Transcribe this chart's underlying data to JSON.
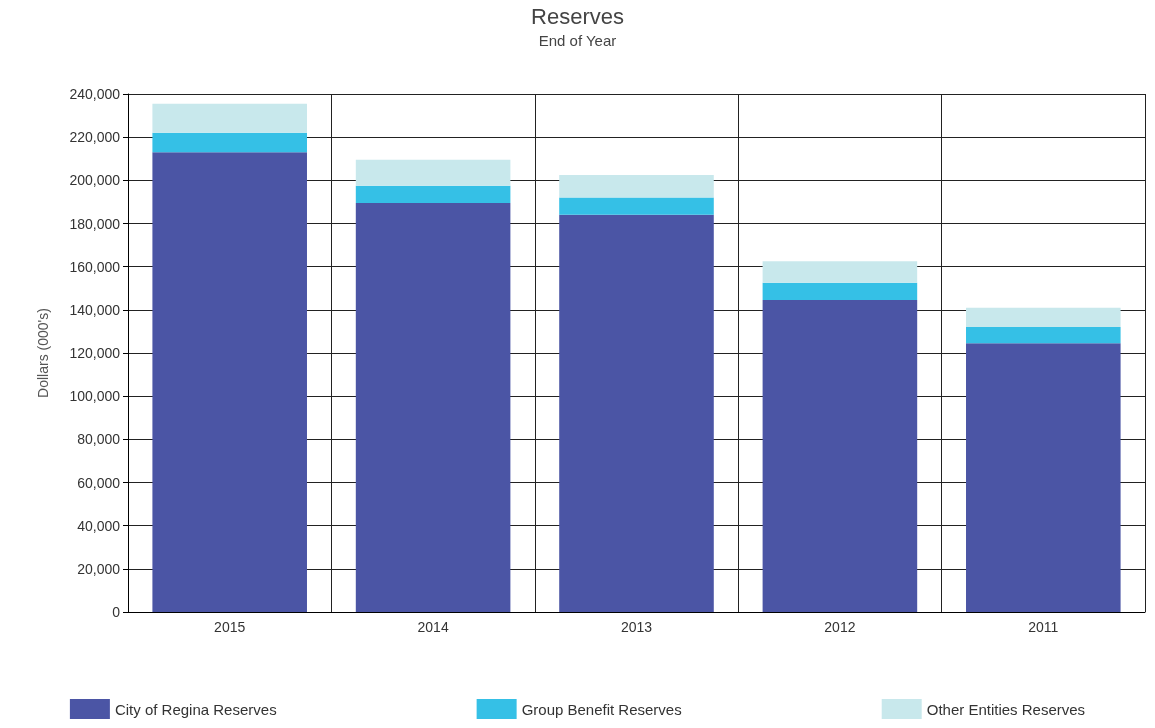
{
  "chart_data": {
    "type": "bar",
    "title": "Reserves",
    "subtitle": "End of Year",
    "ylabel": "Dollars (000's)",
    "categories": [
      "2015",
      "2014",
      "2013",
      "2012",
      "2011"
    ],
    "stacked": true,
    "series": [
      {
        "name": "City of Regina Reserves",
        "color": "#4b55a5",
        "values": [
          213000,
          189500,
          184000,
          144500,
          124500
        ]
      },
      {
        "name": "Group Benefit Reserves",
        "color": "#35c0e6",
        "values": [
          9000,
          8000,
          8000,
          8000,
          7500
        ]
      },
      {
        "name": "Other Entities Reserves",
        "color": "#c8e8ec",
        "values": [
          13500,
          12000,
          10500,
          10000,
          9000
        ]
      }
    ],
    "ylim": [
      0,
      240000
    ],
    "yticks": [
      0,
      {
        "value": 20000,
        "label": "20,000"
      },
      {
        "value": 40000,
        "label": "40,000"
      },
      {
        "value": 60000,
        "label": "60,000"
      },
      {
        "value": 80000,
        "label": "80,000"
      },
      {
        "value": 100000,
        "label": "100,000"
      },
      {
        "value": 120000,
        "label": "120,000"
      },
      {
        "value": 140000,
        "label": "140,000"
      },
      {
        "value": 160000,
        "label": "160,000"
      },
      {
        "value": 180000,
        "label": "180,000"
      },
      {
        "value": 200000,
        "label": "200,000"
      },
      {
        "value": 220000,
        "label": "220,000"
      },
      {
        "value": 240000,
        "label": "240,000"
      }
    ],
    "grid": true,
    "legend": "bottom"
  }
}
